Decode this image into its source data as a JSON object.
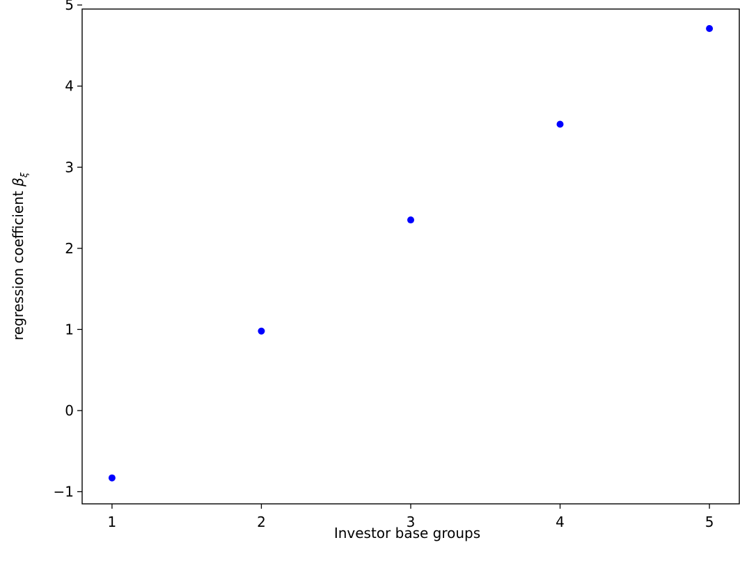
{
  "chart_data": {
    "type": "scatter",
    "title": "",
    "xlabel": "Investor base groups",
    "ylabel": {
      "text": "regression coefficient ",
      "symbol": "β",
      "subscript": "ξ"
    },
    "xlim": [
      0.8,
      5.2
    ],
    "ylim": [
      -1.15,
      4.95
    ],
    "xticks": [
      "1",
      "2",
      "3",
      "4",
      "5"
    ],
    "yticks": [
      "−1",
      "0",
      "1",
      "2",
      "3",
      "4",
      "5"
    ],
    "grid": false,
    "marker_color": "#0000ff",
    "points": [
      {
        "x": 1,
        "y": -0.83
      },
      {
        "x": 2,
        "y": 0.98
      },
      {
        "x": 3,
        "y": 2.35
      },
      {
        "x": 4,
        "y": 3.53
      },
      {
        "x": 5,
        "y": 4.71
      }
    ]
  }
}
